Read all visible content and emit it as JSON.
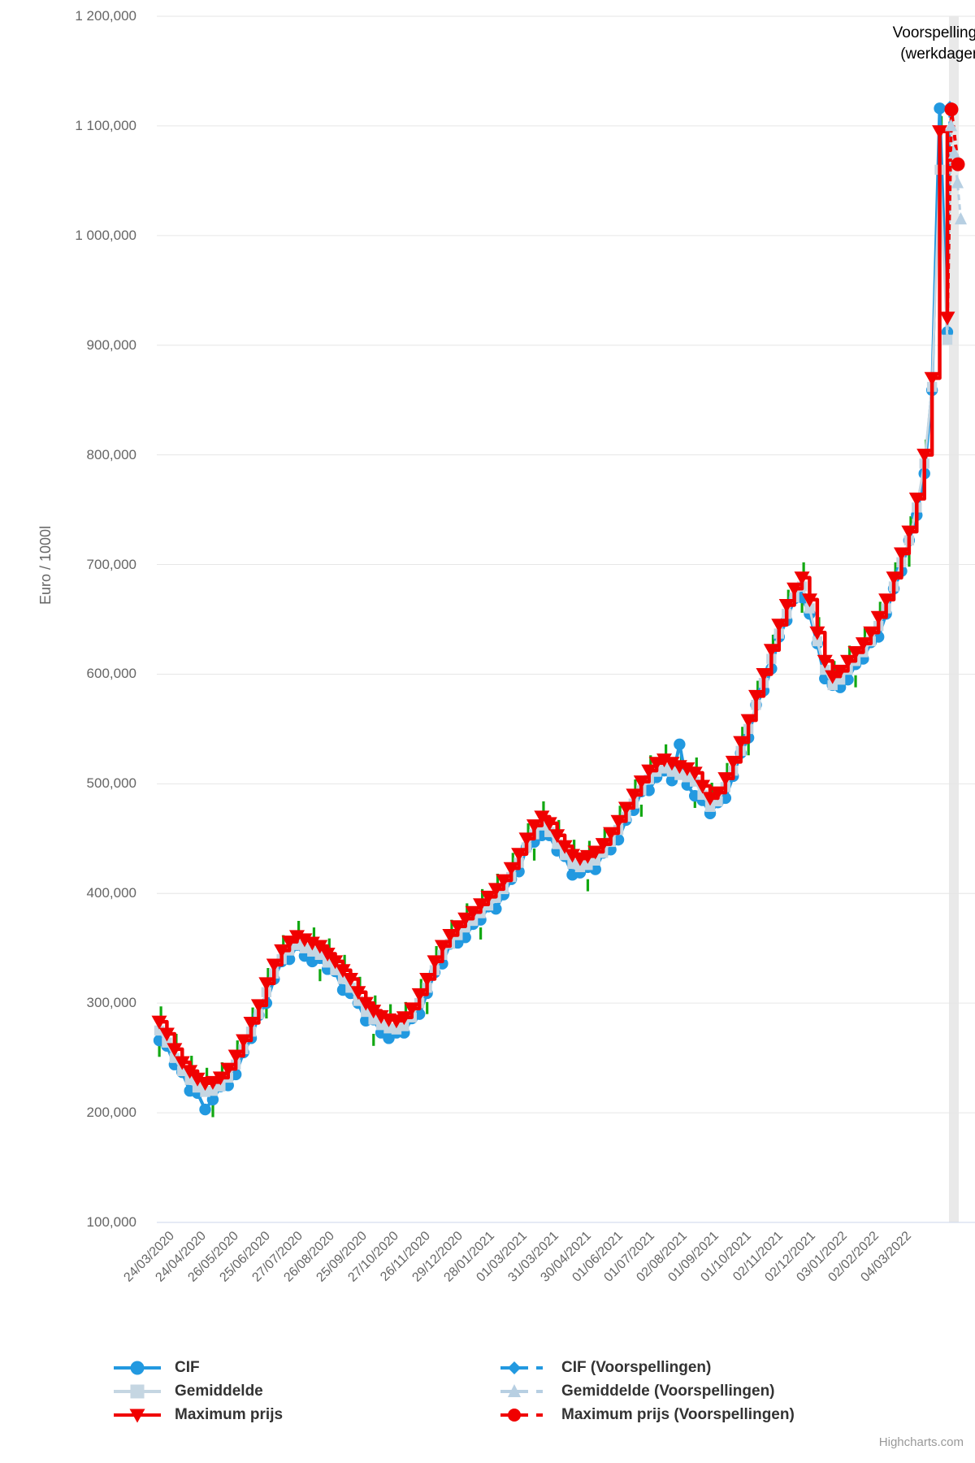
{
  "y_axis": {
    "title": "Euro / 1000l",
    "labels": [
      "1 200,000",
      "1 100,000",
      "1 000,000",
      "900,000",
      "800,000",
      "700,000",
      "600,000",
      "500,000",
      "400,000",
      "300,000",
      "200,000",
      "100,000"
    ]
  },
  "x_axis": {
    "labels": [
      "24/03/2020",
      "24/04/2020",
      "26/05/2020",
      "25/06/2020",
      "27/07/2020",
      "26/08/2020",
      "25/09/2020",
      "27/10/2020",
      "26/11/2020",
      "29/12/2020",
      "28/01/2021",
      "01/03/2021",
      "31/03/2021",
      "30/04/2021",
      "01/06/2021",
      "01/07/2021",
      "02/08/2021",
      "01/09/2021",
      "01/10/2021",
      "02/11/2021",
      "02/12/2021",
      "03/01/2022",
      "02/02/2022",
      "04/03/2022"
    ]
  },
  "annotation": {
    "line1": "Voorspellingen",
    "line2": "(werkdagen)"
  },
  "credit": "Highcharts.com",
  "colors": {
    "cif_blue": "#2299e0",
    "gem_gray": "#c5d6e2",
    "gem_forecast": "#b7cfe2",
    "max_red": "#f00000",
    "green_tick": "#12a812",
    "grid": "#e6e6e6",
    "axis_line": "#ccd6eb",
    "band": "#e9e9e9",
    "axis_text": "#666666",
    "legend_text": "#333333",
    "annotation_text": "#000000",
    "credit_text": "#999999"
  },
  "legend": {
    "items": [
      {
        "id": "cif",
        "label": "CIF",
        "marker": "circle",
        "color_key": "cif_blue",
        "dashed": false
      },
      {
        "id": "gemiddelde",
        "label": "Gemiddelde",
        "marker": "square",
        "color_key": "gem_gray",
        "dashed": false
      },
      {
        "id": "maximum-prijs",
        "label": "Maximum prijs",
        "marker": "triangle-down",
        "color_key": "max_red",
        "dashed": false
      },
      {
        "id": "cif-voorspellingen",
        "label": "CIF (Voorspellingen)",
        "marker": "diamond",
        "color_key": "cif_blue",
        "dashed": true
      },
      {
        "id": "gemiddelde-voorspellingen",
        "label": "Gemiddelde (Voorspellingen)",
        "marker": "triangle-up",
        "color_key": "gem_forecast",
        "dashed": true
      },
      {
        "id": "maximum-prijs-voorspellingen",
        "label": "Maximum prijs (Voorspellingen)",
        "marker": "circle",
        "color_key": "max_red",
        "dashed": true
      }
    ]
  },
  "chart_data": {
    "type": "line",
    "title": "",
    "ylabel": "Euro / 1000l",
    "ylim": [
      100000,
      1200000
    ],
    "grid": true,
    "legend_position": "bottom",
    "x_tick_labels": [
      "24/03/2020",
      "24/04/2020",
      "26/05/2020",
      "25/06/2020",
      "27/07/2020",
      "26/08/2020",
      "25/09/2020",
      "27/10/2020",
      "26/11/2020",
      "29/12/2020",
      "28/01/2021",
      "01/03/2021",
      "31/03/2021",
      "30/04/2021",
      "01/06/2021",
      "01/07/2021",
      "02/08/2021",
      "01/09/2021",
      "01/10/2021",
      "02/11/2021",
      "02/12/2021",
      "03/01/2022",
      "02/02/2022",
      "04/03/2022"
    ],
    "sampling": "approx weekly values estimated from pixels, Euro per 1000l",
    "forecast_band": {
      "present": true,
      "label_line1": "Voorspellingen",
      "label_line2": "(werkdagen)"
    },
    "series": [
      {
        "name": "CIF",
        "marker": "circle",
        "color_key": "cif_blue",
        "dashed": false,
        "step": false,
        "values": [
          266000,
          261000,
          244000,
          237000,
          220000,
          218000,
          203000,
          212000,
          224000,
          225000,
          235000,
          255000,
          268000,
          289000,
          300000,
          322000,
          338000,
          340000,
          353000,
          343000,
          338000,
          341000,
          331000,
          329000,
          312000,
          309000,
          300000,
          284000,
          285000,
          273000,
          268000,
          273000,
          273000,
          286000,
          290000,
          309000,
          328000,
          336000,
          354000,
          355000,
          360000,
          372000,
          376000,
          388000,
          386000,
          399000,
          413000,
          420000,
          442000,
          447000,
          453000,
          453000,
          439000,
          434000,
          417000,
          419000,
          424000,
          422000,
          437000,
          440000,
          449000,
          467000,
          476000,
          493000,
          494000,
          506000,
          512000,
          503000,
          536000,
          499000,
          489000,
          485000,
          473000,
          483000,
          487000,
          507000,
          528000,
          542000,
          572000,
          585000,
          605000,
          634000,
          649000,
          669000,
          670000,
          655000,
          628000,
          596000,
          590000,
          588000,
          595000,
          609000,
          614000,
          629000,
          634000,
          655000,
          678000,
          694000,
          722000,
          745000,
          783000,
          859000,
          1116000,
          912000
        ]
      },
      {
        "name": "Gemiddelde",
        "marker": "square",
        "color_key": "gem_gray",
        "dashed": false,
        "step": false,
        "values": [
          275000,
          264000,
          250000,
          238000,
          230000,
          223000,
          219000,
          220000,
          224000,
          232000,
          244000,
          258000,
          274000,
          290000,
          310000,
          327000,
          340000,
          348000,
          353000,
          350000,
          347000,
          344000,
          337000,
          330000,
          322000,
          314000,
          302000,
          292000,
          285000,
          280000,
          277000,
          276000,
          279000,
          287000,
          300000,
          314000,
          330000,
          344000,
          354000,
          362000,
          369000,
          375000,
          382000,
          389000,
          396000,
          404000,
          415000,
          428000,
          442000,
          454000,
          462000,
          456000,
          445000,
          435000,
          427000,
          424000,
          426000,
          430000,
          437000,
          447000,
          458000,
          470000,
          482000,
          494000,
          504000,
          511000,
          514000,
          511000,
          508000,
          506000,
          502000,
          490000,
          479000,
          484000,
          497000,
          512000,
          530000,
          550000,
          572000,
          592000,
          614000,
          637000,
          655000,
          670000,
          680000,
          660000,
          630000,
          604000,
          590000,
          595000,
          604000,
          612000,
          620000,
          630000,
          644000,
          660000,
          680000,
          702000,
          722000,
          752000,
          792000,
          862000,
          1060000,
          905000
        ]
      },
      {
        "name": "Maximum prijs",
        "marker": "triangle-down",
        "color_key": "max_red",
        "dashed": false,
        "step": true,
        "values": [
          283000,
          272000,
          258000,
          246000,
          238000,
          231000,
          227000,
          228000,
          232000,
          240000,
          252000,
          266000,
          282000,
          298000,
          318000,
          335000,
          348000,
          356000,
          361000,
          358000,
          355000,
          352000,
          345000,
          338000,
          330000,
          322000,
          310000,
          300000,
          293000,
          288000,
          285000,
          284000,
          287000,
          295000,
          308000,
          322000,
          338000,
          352000,
          362000,
          370000,
          377000,
          383000,
          390000,
          397000,
          404000,
          412000,
          423000,
          436000,
          450000,
          462000,
          470000,
          464000,
          453000,
          443000,
          435000,
          432000,
          434000,
          438000,
          445000,
          455000,
          466000,
          478000,
          490000,
          502000,
          512000,
          519000,
          522000,
          519000,
          516000,
          514000,
          510000,
          498000,
          487000,
          492000,
          505000,
          520000,
          538000,
          558000,
          580000,
          600000,
          622000,
          645000,
          663000,
          678000,
          688000,
          668000,
          638000,
          612000,
          598000,
          603000,
          612000,
          620000,
          628000,
          638000,
          652000,
          668000,
          688000,
          710000,
          730000,
          760000,
          800000,
          870000,
          1095000,
          925000
        ]
      },
      {
        "name": "CIF (Voorspellingen)",
        "marker": "diamond",
        "color_key": "cif_blue",
        "dashed": true,
        "step": false,
        "values": [
          1118000
        ]
      },
      {
        "name": "Gemiddelde (Voorspellingen)",
        "marker": "triangle-up",
        "color_key": "gem_forecast",
        "dashed": true,
        "step": false,
        "values": [
          1100000,
          1075000,
          1048000,
          1015000
        ]
      },
      {
        "name": "Maximum prijs (Voorspellingen)",
        "marker": "circle",
        "color_key": "max_red",
        "dashed": true,
        "step": false,
        "values": [
          1115000,
          1065000
        ]
      }
    ],
    "unlabeled_green_ticks": {
      "color_key": "green_tick",
      "note": "small green marks visible behind series"
    }
  }
}
